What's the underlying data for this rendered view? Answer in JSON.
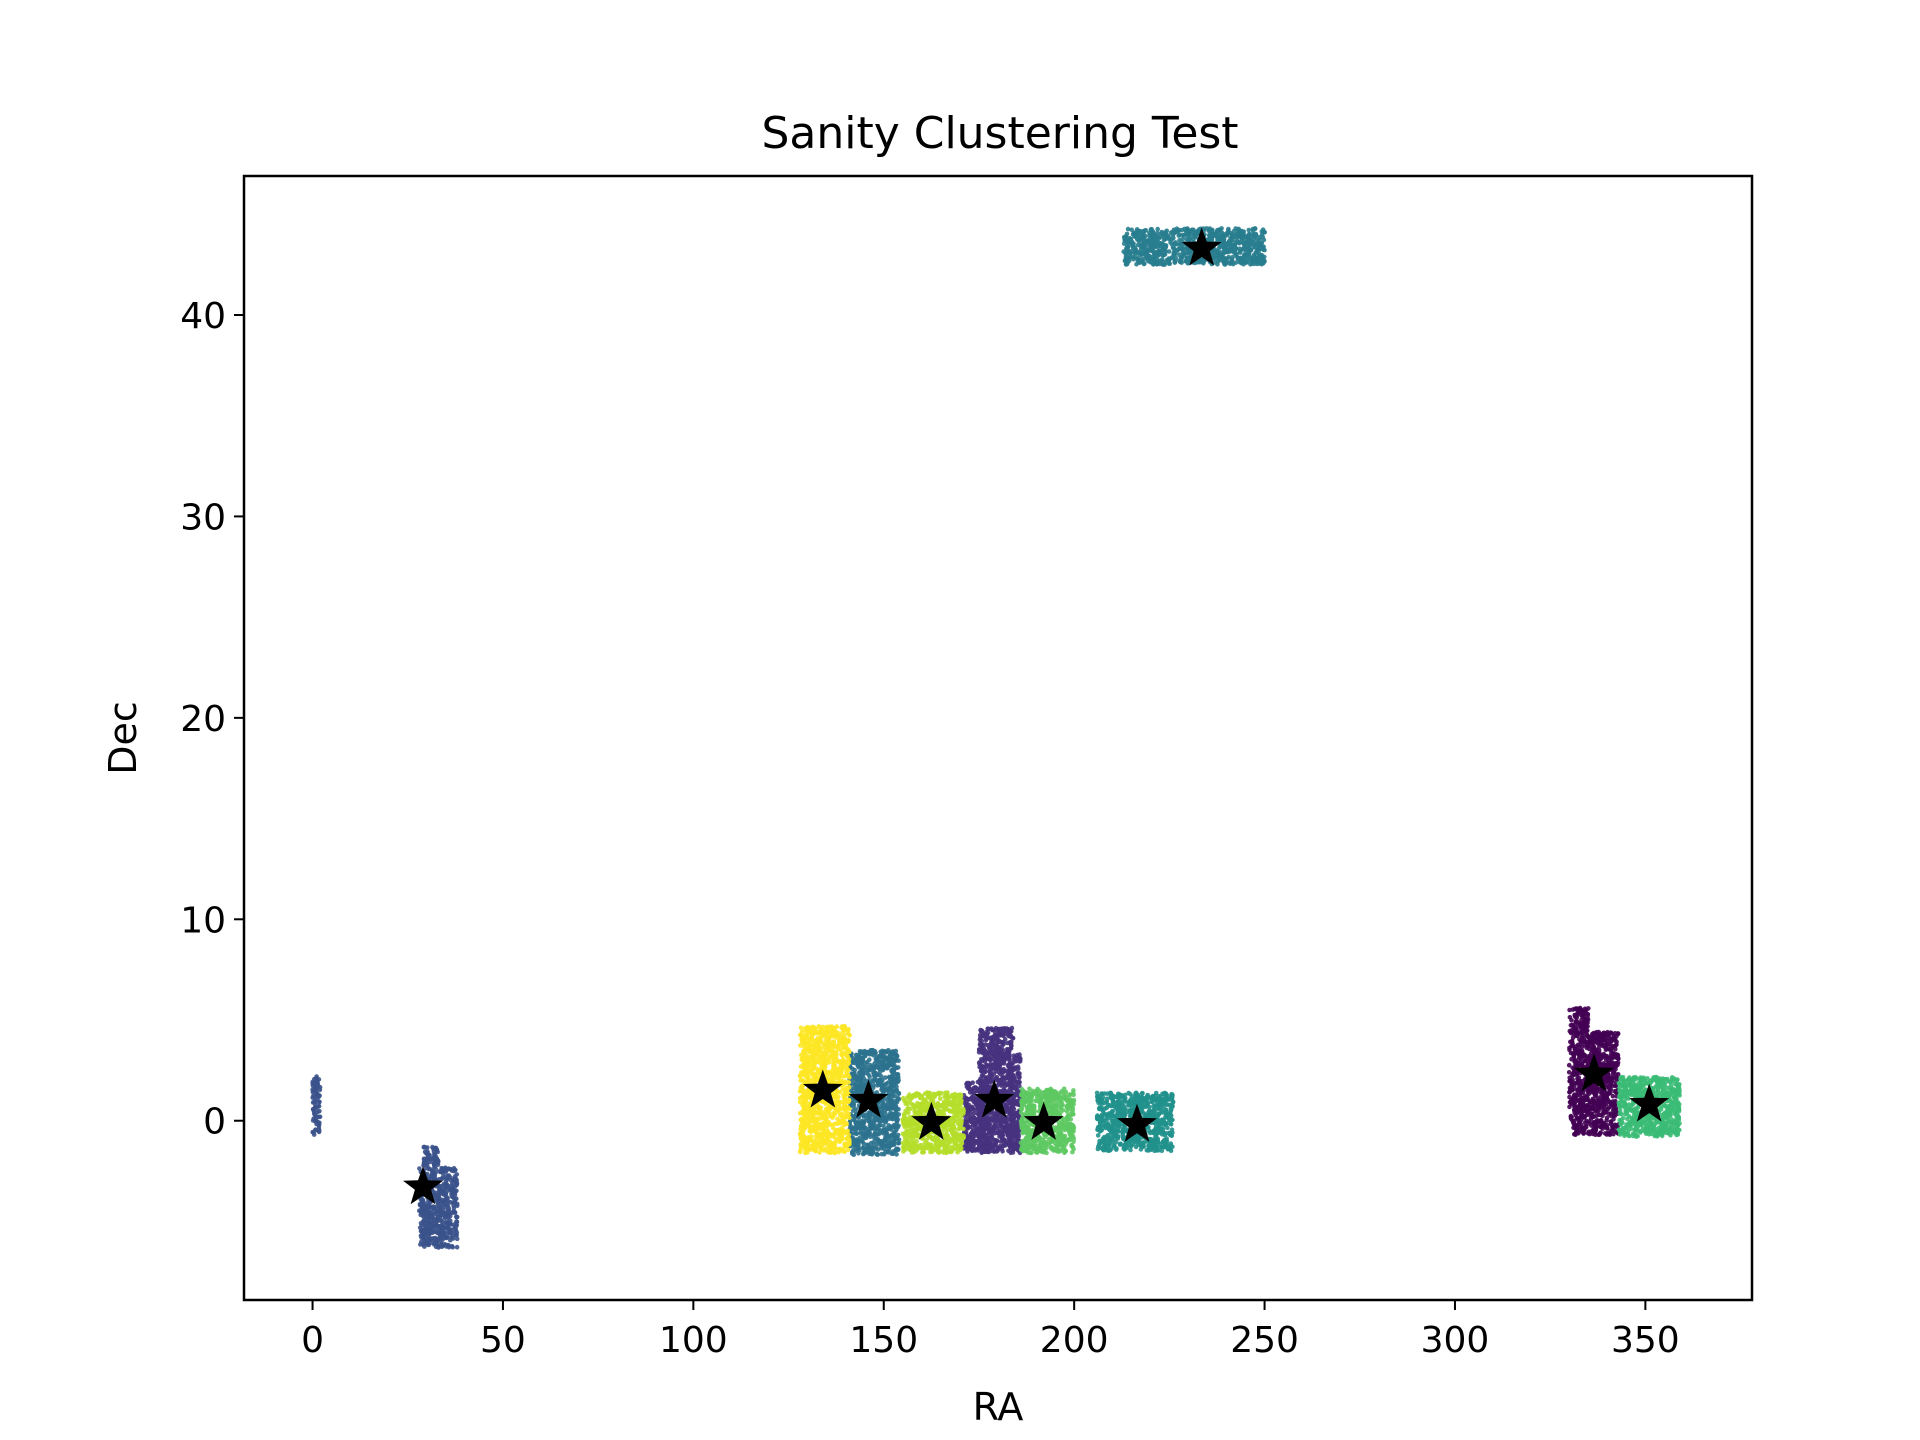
{
  "chart_data": {
    "type": "scatter",
    "title": "Sanity Clustering Test",
    "xlabel": "RA",
    "ylabel": "Dec",
    "xlim": [
      -18,
      378
    ],
    "ylim": [
      -8.9,
      46.9
    ],
    "xticks": [
      0,
      50,
      100,
      150,
      200,
      250,
      300,
      350
    ],
    "yticks": [
      0,
      10,
      20,
      30,
      40
    ],
    "grid": false,
    "legend": "none",
    "point_color_map": "viridis",
    "clusters": [
      {
        "color": "#440154",
        "regions": [
          {
            "ra": [
              330,
              335
            ],
            "dec": [
              -0.7,
              5.6
            ]
          },
          {
            "ra": [
              335,
              343
            ],
            "dec": [
              -0.7,
              4.4
            ]
          }
        ],
        "centroid": [
          336.5,
          2.3
        ]
      },
      {
        "color": "#46327e",
        "regions": [
          {
            "ra": [
              171,
              178
            ],
            "dec": [
              -1.6,
              2.0
            ]
          },
          {
            "ra": [
              175,
              184
            ],
            "dec": [
              -1.6,
              4.6
            ]
          },
          {
            "ra": [
              183,
              186
            ],
            "dec": [
              -1.6,
              3.3
            ]
          }
        ],
        "centroid": [
          179,
          1.0
        ]
      },
      {
        "color": "#3b528b",
        "regions": [
          {
            "ra": [
              28,
              38
            ],
            "dec": [
              -6.3,
              -2.3
            ]
          },
          {
            "ra": [
              29,
              33
            ],
            "dec": [
              -2.3,
              -1.3
            ]
          },
          {
            "ra": [
              0,
              2
            ],
            "dec": [
              -0.8,
              2.2
            ]
          }
        ],
        "centroid": [
          29,
          -3.3
        ]
      },
      {
        "color": "#2c728e",
        "regions": [
          {
            "ra": [
              141,
              154
            ],
            "dec": [
              -1.7,
              3.5
            ]
          }
        ],
        "centroid": [
          146,
          1.0
        ]
      },
      {
        "color": "#287d8e",
        "regions": [
          {
            "ra": [
              213,
              250
            ],
            "dec": [
              42.5,
              44.3
            ]
          }
        ],
        "centroid": [
          233.5,
          43.3
        ]
      },
      {
        "color": "#21918c",
        "regions": [
          {
            "ra": [
              206,
              226
            ],
            "dec": [
              -1.5,
              1.4
            ]
          }
        ],
        "centroid": [
          216.5,
          -0.2
        ]
      },
      {
        "color": "#3bbb75",
        "regions": [
          {
            "ra": [
              343,
              359
            ],
            "dec": [
              -0.8,
              2.2
            ]
          }
        ],
        "centroid": [
          351,
          0.8
        ]
      },
      {
        "color": "#5ec962",
        "regions": [
          {
            "ra": [
              186,
              200
            ],
            "dec": [
              -1.6,
              1.6
            ]
          }
        ],
        "centroid": [
          192,
          -0.1
        ]
      },
      {
        "color": "#b5de2b",
        "regions": [
          {
            "ra": [
              155,
              171
            ],
            "dec": [
              -1.6,
              1.4
            ]
          }
        ],
        "centroid": [
          162.5,
          -0.1
        ]
      },
      {
        "color": "#fde725",
        "regions": [
          {
            "ra": [
              128,
              141
            ],
            "dec": [
              -1.6,
              4.7
            ]
          }
        ],
        "centroid": [
          134,
          1.5
        ]
      }
    ],
    "centroid_marker": {
      "shape": "star",
      "color": "#000000"
    }
  }
}
